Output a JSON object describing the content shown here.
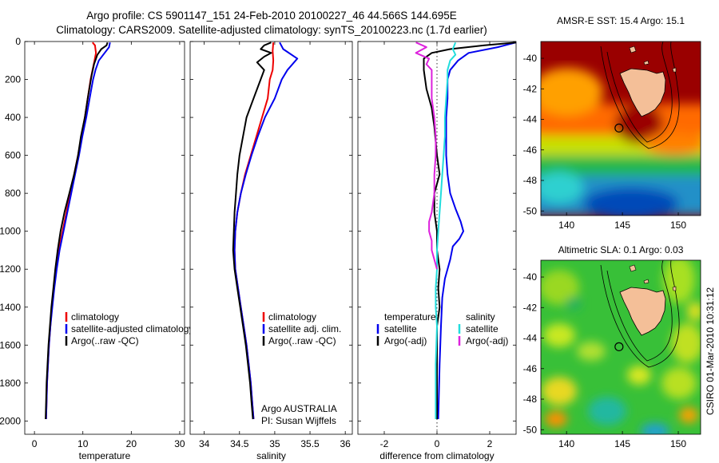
{
  "header": {
    "line1": "Argo profile: CS 5901147_151 24-Feb-2010 20100227_46 44.566S 144.695E",
    "line2": "Climatology: CARS2009. Satellite-adjusted climatology: synTS_20100223.nc (1.7d earlier)"
  },
  "side_text": "CSIRO 01-Mar-2010 10:31:12",
  "argo_credit": [
    "Argo AUSTRALIA",
    "PI: Susan Wijffels"
  ],
  "colors": {
    "climatology": "#ee0000",
    "satellite": "#0000ee",
    "argo": "#000000",
    "sal_satellite": "#22dddd",
    "sal_argo": "#dd22dd",
    "land": "#f4bf98"
  },
  "chart_data": [
    {
      "type": "line",
      "id": "temperature",
      "xlabel": "temperature",
      "xlim": [
        -2,
        31
      ],
      "ylim": [
        2070,
        0
      ],
      "xticks": [
        0,
        10,
        20,
        30
      ],
      "yticks": [
        0,
        200,
        400,
        600,
        800,
        1000,
        1200,
        1400,
        1600,
        1800,
        2000
      ],
      "legend": [
        "climatology",
        "satellite-adjusted climatology",
        "Argo(..raw -QC)"
      ],
      "series": [
        {
          "name": "climatology",
          "color": "#ee0000",
          "points": [
            [
              12.0,
              5
            ],
            [
              12.5,
              20
            ],
            [
              12.7,
              60
            ],
            [
              12.4,
              100
            ],
            [
              12.0,
              150
            ],
            [
              11.6,
              200
            ],
            [
              11.0,
              300
            ],
            [
              10.4,
              400
            ],
            [
              9.7,
              500
            ],
            [
              9.0,
              600
            ],
            [
              8.2,
              700
            ],
            [
              7.4,
              800
            ],
            [
              6.6,
              900
            ],
            [
              5.8,
              1000
            ],
            [
              5.0,
              1100
            ],
            [
              4.5,
              1200
            ],
            [
              4.0,
              1300
            ],
            [
              3.6,
              1400
            ],
            [
              3.3,
              1500
            ],
            [
              3.0,
              1600
            ],
            [
              2.8,
              1700
            ],
            [
              2.6,
              1800
            ],
            [
              2.5,
              1900
            ],
            [
              2.4,
              1990
            ]
          ]
        },
        {
          "name": "satellite-adjusted climatology",
          "color": "#0000ee",
          "points": [
            [
              15.6,
              5
            ],
            [
              15.4,
              30
            ],
            [
              14.5,
              60
            ],
            [
              13.3,
              100
            ],
            [
              12.6,
              150
            ],
            [
              12.1,
              200
            ],
            [
              11.4,
              300
            ],
            [
              10.7,
              400
            ],
            [
              9.9,
              500
            ],
            [
              9.2,
              600
            ],
            [
              8.4,
              700
            ],
            [
              7.6,
              800
            ],
            [
              6.8,
              900
            ],
            [
              6.0,
              1000
            ],
            [
              5.2,
              1100
            ],
            [
              4.6,
              1200
            ],
            [
              4.1,
              1300
            ],
            [
              3.7,
              1400
            ],
            [
              3.3,
              1500
            ],
            [
              3.0,
              1600
            ],
            [
              2.8,
              1700
            ],
            [
              2.6,
              1800
            ],
            [
              2.5,
              1900
            ],
            [
              2.4,
              1990
            ]
          ]
        },
        {
          "name": "Argo(..raw -QC)",
          "color": "#000000",
          "points": [
            [
              15.1,
              5
            ],
            [
              14.9,
              20
            ],
            [
              13.8,
              40
            ],
            [
              13.0,
              70
            ],
            [
              12.3,
              120
            ],
            [
              11.8,
              180
            ],
            [
              11.0,
              300
            ],
            [
              10.4,
              400
            ],
            [
              9.6,
              500
            ],
            [
              9.0,
              600
            ],
            [
              8.2,
              700
            ],
            [
              7.2,
              800
            ],
            [
              6.2,
              900
            ],
            [
              5.4,
              1000
            ],
            [
              4.8,
              1100
            ],
            [
              4.3,
              1200
            ],
            [
              3.9,
              1300
            ],
            [
              3.5,
              1400
            ],
            [
              3.2,
              1500
            ],
            [
              2.9,
              1600
            ],
            [
              2.7,
              1700
            ],
            [
              2.5,
              1800
            ],
            [
              2.4,
              1900
            ],
            [
              2.3,
              1990
            ]
          ]
        }
      ]
    },
    {
      "type": "line",
      "id": "salinity",
      "xlabel": "salinity",
      "xlim": [
        33.8,
        36.1
      ],
      "ylim": [
        2070,
        0
      ],
      "xticks": [
        34,
        34.5,
        35,
        35.5,
        36
      ],
      "legend": [
        "climatology",
        "satellite adj. clim.",
        "Argo(..raw -QC)"
      ],
      "series": [
        {
          "name": "climatology",
          "color": "#ee0000",
          "points": [
            [
              34.98,
              5
            ],
            [
              34.97,
              50
            ],
            [
              34.98,
              100
            ],
            [
              34.97,
              150
            ],
            [
              34.93,
              200
            ],
            [
              34.9,
              300
            ],
            [
              34.82,
              400
            ],
            [
              34.74,
              500
            ],
            [
              34.66,
              600
            ],
            [
              34.58,
              700
            ],
            [
              34.52,
              800
            ],
            [
              34.47,
              900
            ],
            [
              34.44,
              1000
            ],
            [
              34.43,
              1100
            ],
            [
              34.44,
              1200
            ],
            [
              34.48,
              1300
            ],
            [
              34.52,
              1400
            ],
            [
              34.56,
              1500
            ],
            [
              34.6,
              1600
            ],
            [
              34.63,
              1700
            ],
            [
              34.66,
              1800
            ],
            [
              34.68,
              1900
            ],
            [
              34.7,
              1990
            ]
          ]
        },
        {
          "name": "satellite adj. clim.",
          "color": "#0000ee",
          "points": [
            [
              35.07,
              5
            ],
            [
              35.12,
              40
            ],
            [
              35.32,
              90
            ],
            [
              35.18,
              150
            ],
            [
              35.1,
              200
            ],
            [
              35.0,
              300
            ],
            [
              34.86,
              400
            ],
            [
              34.76,
              500
            ],
            [
              34.67,
              600
            ],
            [
              34.59,
              700
            ],
            [
              34.52,
              800
            ],
            [
              34.47,
              900
            ],
            [
              34.44,
              1000
            ],
            [
              34.43,
              1100
            ],
            [
              34.44,
              1200
            ],
            [
              34.48,
              1300
            ],
            [
              34.52,
              1400
            ],
            [
              34.56,
              1500
            ],
            [
              34.6,
              1600
            ],
            [
              34.63,
              1700
            ],
            [
              34.66,
              1800
            ],
            [
              34.68,
              1900
            ],
            [
              34.7,
              1990
            ]
          ]
        },
        {
          "name": "Argo(..raw -QC)",
          "color": "#000000",
          "points": [
            [
              34.95,
              5
            ],
            [
              34.85,
              20
            ],
            [
              34.8,
              40
            ],
            [
              34.95,
              60
            ],
            [
              34.85,
              80
            ],
            [
              34.75,
              110
            ],
            [
              34.85,
              150
            ],
            [
              34.8,
              200
            ],
            [
              34.7,
              300
            ],
            [
              34.65,
              350
            ],
            [
              34.6,
              400
            ],
            [
              34.55,
              500
            ],
            [
              34.5,
              600
            ],
            [
              34.47,
              700
            ],
            [
              34.45,
              800
            ],
            [
              34.43,
              900
            ],
            [
              34.42,
              1000
            ],
            [
              34.41,
              1100
            ],
            [
              34.43,
              1200
            ],
            [
              34.47,
              1300
            ],
            [
              34.51,
              1400
            ],
            [
              34.55,
              1500
            ],
            [
              34.59,
              1600
            ],
            [
              34.62,
              1700
            ],
            [
              34.65,
              1800
            ],
            [
              34.67,
              1900
            ],
            [
              34.69,
              1990
            ]
          ]
        }
      ]
    },
    {
      "type": "line",
      "id": "difference",
      "xlabel": "difference from climatology",
      "xlim": [
        -3,
        3
      ],
      "ylim": [
        2070,
        0
      ],
      "xticks": [
        -2,
        0,
        2
      ],
      "legend_left_title": "temperature",
      "legend_right_title": "salinity",
      "legend_left": [
        "satellite",
        "Argo(-adj)"
      ],
      "legend_right": [
        "satellite",
        "Argo(-adj)"
      ],
      "series": [
        {
          "name": "temperature satellite",
          "color": "#0000ee",
          "points": [
            [
              3.0,
              5
            ],
            [
              2.3,
              30
            ],
            [
              1.2,
              60
            ],
            [
              0.8,
              100
            ],
            [
              0.5,
              150
            ],
            [
              0.4,
              200
            ],
            [
              0.4,
              300
            ],
            [
              0.35,
              400
            ],
            [
              0.35,
              500
            ],
            [
              0.35,
              600
            ],
            [
              0.4,
              700
            ],
            [
              0.5,
              800
            ],
            [
              0.7,
              880
            ],
            [
              0.9,
              950
            ],
            [
              1.0,
              1000
            ],
            [
              0.85,
              1040
            ],
            [
              0.6,
              1080
            ],
            [
              0.5,
              1150
            ],
            [
              0.3,
              1250
            ],
            [
              0.2,
              1350
            ],
            [
              0.15,
              1500
            ],
            [
              0.1,
              1700
            ],
            [
              0.05,
              1990
            ]
          ]
        },
        {
          "name": "temperature Argo(-adj)",
          "color": "#000000",
          "points": [
            [
              3.0,
              5
            ],
            [
              1.8,
              20
            ],
            [
              0.5,
              40
            ],
            [
              -0.2,
              60
            ],
            [
              -0.5,
              90
            ],
            [
              -0.5,
              150
            ],
            [
              -0.4,
              250
            ],
            [
              -0.2,
              350
            ],
            [
              -0.1,
              450
            ],
            [
              0.0,
              600
            ],
            [
              0.1,
              700
            ],
            [
              -0.1,
              800
            ],
            [
              -0.1,
              900
            ],
            [
              0.0,
              1000
            ],
            [
              0.0,
              1100
            ],
            [
              0.1,
              1200
            ],
            [
              0.05,
              1300
            ],
            [
              0.1,
              1400
            ],
            [
              0.0,
              1500
            ],
            [
              0.0,
              1700
            ],
            [
              0.0,
              1990
            ]
          ]
        },
        {
          "name": "salinity satellite",
          "color": "#22dddd",
          "points": [
            [
              0.7,
              5
            ],
            [
              0.6,
              40
            ],
            [
              0.7,
              70
            ],
            [
              0.5,
              100
            ],
            [
              0.4,
              150
            ],
            [
              0.4,
              200
            ],
            [
              0.35,
              300
            ],
            [
              0.3,
              400
            ],
            [
              0.3,
              500
            ],
            [
              0.25,
              600
            ],
            [
              0.2,
              700
            ],
            [
              0.15,
              800
            ],
            [
              0.1,
              900
            ],
            [
              0.05,
              1000
            ],
            [
              0.0,
              1100
            ],
            [
              0.0,
              1200
            ],
            [
              -0.05,
              1300
            ],
            [
              -0.05,
              1400
            ],
            [
              0.0,
              1500
            ],
            [
              -0.05,
              1700
            ],
            [
              -0.05,
              1990
            ]
          ]
        },
        {
          "name": "salinity Argo(-adj)",
          "color": "#dd22dd",
          "points": [
            [
              -0.8,
              5
            ],
            [
              -0.4,
              30
            ],
            [
              -0.8,
              60
            ],
            [
              -0.3,
              90
            ],
            [
              -0.4,
              120
            ],
            [
              -0.2,
              150
            ],
            [
              -0.2,
              200
            ],
            [
              -0.2,
              300
            ],
            [
              -0.1,
              400
            ],
            [
              -0.05,
              500
            ],
            [
              -0.05,
              600
            ],
            [
              -0.1,
              700
            ],
            [
              -0.1,
              800
            ],
            [
              -0.2,
              900
            ],
            [
              -0.3,
              950
            ],
            [
              -0.3,
              1000
            ],
            [
              -0.2,
              1050
            ],
            [
              -0.2,
              1100
            ],
            [
              -0.1,
              1150
            ],
            [
              0.0,
              1200
            ]
          ]
        }
      ]
    },
    {
      "type": "heatmap",
      "id": "amsre-sst",
      "title": "AMSR-E SST: 15.4 Argo: 15.1",
      "xlim": [
        137.7,
        152.0
      ],
      "ylim": [
        -50.3,
        -38.9
      ],
      "xticks": [
        140,
        145,
        150
      ],
      "yticks": [
        -40,
        -42,
        -44,
        -46,
        -48,
        -50
      ],
      "marker": {
        "lon": 144.695,
        "lat": -44.566
      }
    },
    {
      "type": "heatmap",
      "id": "altimetric-sla",
      "title": "Altimetric SLA: 0.1 Argo: 0.03",
      "xlim": [
        137.7,
        152.0
      ],
      "ylim": [
        -50.3,
        -38.9
      ],
      "xticks": [
        140,
        145,
        150
      ],
      "yticks": [
        -40,
        -42,
        -44,
        -46,
        -48,
        -50
      ],
      "marker": {
        "lon": 144.695,
        "lat": -44.566
      }
    }
  ]
}
